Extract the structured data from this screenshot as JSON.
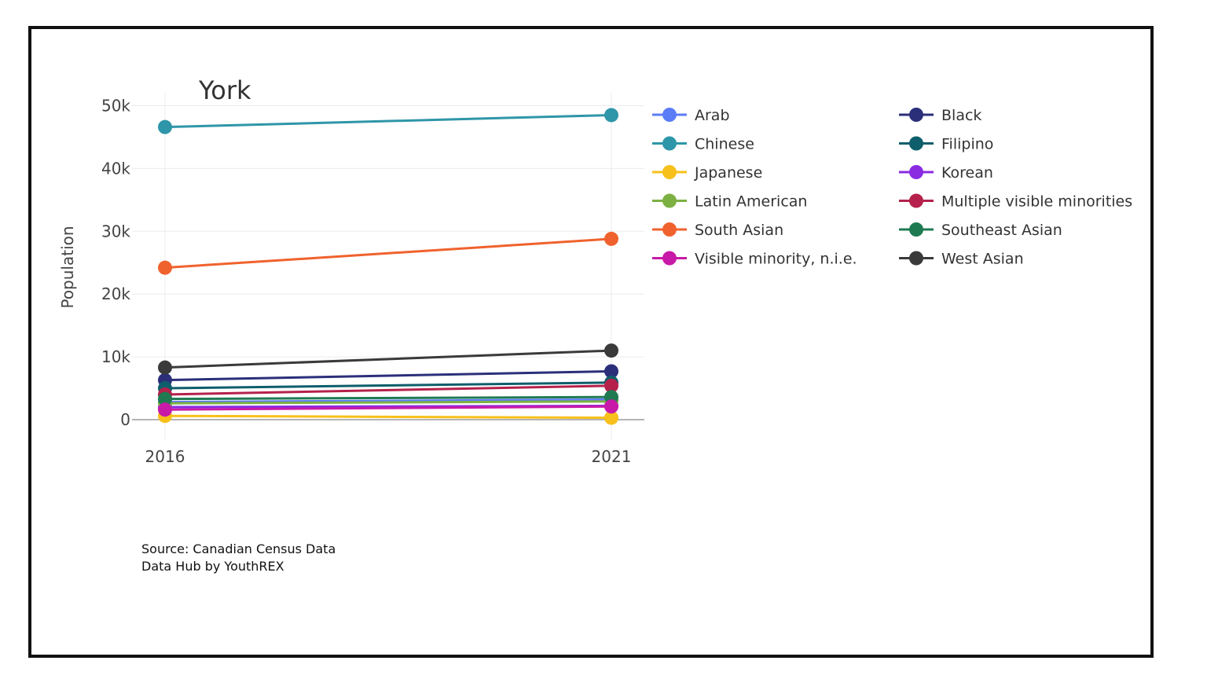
{
  "chart_data": {
    "type": "line",
    "title": "York",
    "xlabel": "",
    "ylabel": "Population",
    "x": [
      "2016",
      "2021"
    ],
    "ylim": [
      -2500,
      52000
    ],
    "yticks": [
      0,
      10000,
      20000,
      30000,
      40000,
      50000
    ],
    "ytick_labels": [
      "0",
      "10k",
      "20k",
      "30k",
      "40k",
      "50k"
    ],
    "grid": true,
    "legend_position": "right",
    "series": [
      {
        "name": "Arab",
        "color": "#5b7cf7",
        "values": [
          2800,
          3200
        ]
      },
      {
        "name": "Black",
        "color": "#2b2f7a",
        "values": [
          6300,
          7700
        ]
      },
      {
        "name": "Chinese",
        "color": "#2e96a8",
        "values": [
          46600,
          48500
        ]
      },
      {
        "name": "Filipino",
        "color": "#0e5e6b",
        "values": [
          5000,
          5900
        ]
      },
      {
        "name": "Japanese",
        "color": "#f7c01a",
        "values": [
          600,
          300
        ]
      },
      {
        "name": "Korean",
        "color": "#8a2be2",
        "values": [
          2000,
          2200
        ]
      },
      {
        "name": "Latin American",
        "color": "#7db043",
        "values": [
          2600,
          2900
        ]
      },
      {
        "name": "Multiple visible minorities",
        "color": "#b5214a",
        "values": [
          4000,
          5400
        ]
      },
      {
        "name": "South Asian",
        "color": "#f0622d",
        "values": [
          24200,
          28800
        ]
      },
      {
        "name": "Southeast Asian",
        "color": "#1f7a52",
        "values": [
          3300,
          3600
        ]
      },
      {
        "name": "Visible minority, n.i.e.",
        "color": "#c81aa8",
        "values": [
          1600,
          2100
        ]
      },
      {
        "name": "West Asian",
        "color": "#3a3a3a",
        "values": [
          8300,
          11000
        ]
      }
    ]
  },
  "source": {
    "line1": "Source: Canadian Census Data",
    "line2": "Data Hub by YouthREX"
  }
}
